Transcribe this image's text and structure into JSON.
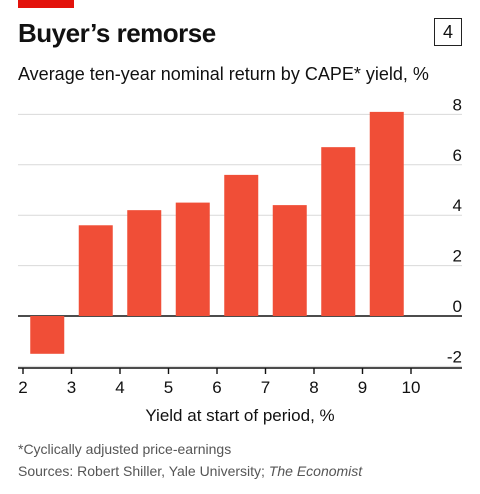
{
  "header": {
    "title": "Buyer’s remorse",
    "chart_number": "4",
    "subtitle": "Average ten-year nominal return by CAPE* yield, %"
  },
  "footer": {
    "footnote": "*Cyclically adjusted price-earnings",
    "source_prefix": "Sources: Robert Shiller, Yale University; ",
    "source_italic": "The Economist"
  },
  "colors": {
    "bar": "#f04e37",
    "accent": "#e3120b",
    "grid": "#d9d9d9",
    "axis": "#111111"
  },
  "chart_data": {
    "type": "bar",
    "title": "Average ten-year nominal return by CAPE* yield, %",
    "xlabel": "Yield at start of period, %",
    "ylabel": "",
    "x_ticks": [
      "2",
      "3",
      "4",
      "5",
      "6",
      "7",
      "8",
      "9",
      "10"
    ],
    "y_ticks": [
      "-2",
      "0",
      "2",
      "4",
      "6",
      "8"
    ],
    "xlim": [
      2,
      10
    ],
    "ylim": [
      -2,
      8
    ],
    "categories": [
      "2.5",
      "3.5",
      "4.5",
      "5.5",
      "6.5",
      "7.5",
      "8.5",
      "9.5"
    ],
    "values": [
      -1.5,
      3.6,
      4.2,
      4.5,
      5.6,
      4.4,
      6.7,
      8.1
    ],
    "grid": true,
    "y_axis_position": "right"
  }
}
